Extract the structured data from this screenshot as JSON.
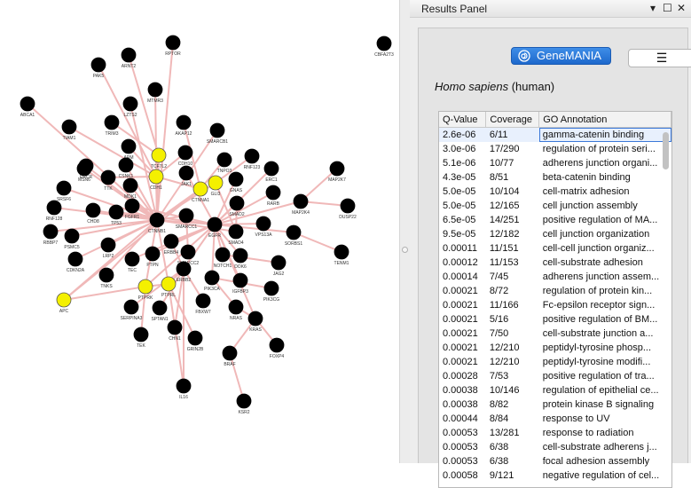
{
  "results_panel": {
    "title": "Results Panel",
    "header_buttons": {
      "dropdown": "▾",
      "float": "☐",
      "close": "✕"
    },
    "genemania_button": "GeneMANIA",
    "species_italic": "Homo sapiens",
    "species_plain": " (human)",
    "menu_button": "☰",
    "table": {
      "columns": [
        "Q-Value",
        "Coverage",
        "GO Annotation"
      ],
      "rows": [
        [
          "2.6e-06",
          "6/11",
          "gamma-catenin binding"
        ],
        [
          "3.0e-06",
          "17/290",
          "regulation of protein seri..."
        ],
        [
          "5.1e-06",
          "10/77",
          "adherens junction organi..."
        ],
        [
          "4.3e-05",
          "8/51",
          "beta-catenin binding"
        ],
        [
          "5.0e-05",
          "10/104",
          "cell-matrix adhesion"
        ],
        [
          "5.0e-05",
          "12/165",
          "cell junction assembly"
        ],
        [
          "6.5e-05",
          "14/251",
          "positive regulation of MA..."
        ],
        [
          "9.5e-05",
          "12/182",
          "cell junction organization"
        ],
        [
          "0.00011",
          "11/151",
          "cell-cell junction organiz..."
        ],
        [
          "0.00012",
          "11/153",
          "cell-substrate adhesion"
        ],
        [
          "0.00014",
          "7/45",
          "adherens junction assem..."
        ],
        [
          "0.00021",
          "8/72",
          "regulation of protein kin..."
        ],
        [
          "0.00021",
          "11/166",
          "Fc-epsilon receptor sign..."
        ],
        [
          "0.00021",
          "5/16",
          "positive regulation of BM..."
        ],
        [
          "0.00021",
          "7/50",
          "cell-substrate junction a..."
        ],
        [
          "0.00021",
          "12/210",
          "peptidyl-tyrosine phosp..."
        ],
        [
          "0.00021",
          "12/210",
          "peptidyl-tyrosine modifi..."
        ],
        [
          "0.00028",
          "7/53",
          "positive regulation of tra..."
        ],
        [
          "0.00038",
          "10/146",
          "regulation of epithelial ce..."
        ],
        [
          "0.00038",
          "8/82",
          "protein kinase B signaling"
        ],
        [
          "0.00044",
          "8/84",
          "response to UV"
        ],
        [
          "0.00053",
          "13/281",
          "response to radiation"
        ],
        [
          "0.00053",
          "6/38",
          "cell-substrate adherens j..."
        ],
        [
          "0.00053",
          "6/38",
          "focal adhesion assembly"
        ],
        [
          "0.00058",
          "9/121",
          "negative regulation of cel..."
        ]
      ]
    }
  },
  "network": {
    "node_color": "#000000",
    "query_node_color": "#f4f000",
    "edge_color": "#f0b8b8",
    "nodes": [
      {
        "id": "RPTOR",
        "label": "RPTOR"
      },
      {
        "id": "CBFA2T3",
        "label": "CBFA2T3"
      },
      {
        "id": "ARNT2",
        "label": "ARNT2"
      },
      {
        "id": "PAK5",
        "label": "PAK5"
      },
      {
        "id": "MTMR3",
        "label": "MTMR3"
      },
      {
        "id": "LZTS2",
        "label": "LZTS2"
      },
      {
        "id": "ABCA1",
        "label": "ABCA1"
      },
      {
        "id": "TRIM3",
        "label": "TRIM3"
      },
      {
        "id": "TIAM1",
        "label": "TIAM1"
      },
      {
        "id": "AKAP12",
        "label": "AKAP12"
      },
      {
        "id": "SMARCB1",
        "label": "SMARCB1"
      },
      {
        "id": "ARM",
        "label": "ARM"
      },
      {
        "id": "TCF7L2",
        "label": "TCF7L2"
      },
      {
        "id": "CDH10",
        "label": "CDH10"
      },
      {
        "id": "CSNK1",
        "label": "CSNK1"
      },
      {
        "id": "CDH1",
        "label": "CDH1"
      },
      {
        "id": "ERCR",
        "label": "ERCR"
      },
      {
        "id": "TNPO3",
        "label": "TNPO3"
      },
      {
        "id": "RNF123",
        "label": "RNF123"
      },
      {
        "id": "MSN6",
        "label": "MSN6"
      },
      {
        "id": "TTK",
        "label": "TTK"
      },
      {
        "id": "JAK1",
        "label": "JAK1"
      },
      {
        "id": "CTNNA1",
        "label": "CTNNA1"
      },
      {
        "id": "GLI3",
        "label": "GLI3"
      },
      {
        "id": "ERC1",
        "label": "ERC1"
      },
      {
        "id": "MAP2K7",
        "label": "MAP2K7"
      },
      {
        "id": "SRSF6",
        "label": "SRSF6"
      },
      {
        "id": "MDK1",
        "label": "MDK1"
      },
      {
        "id": "GNAS",
        "label": "GNAS"
      },
      {
        "id": "RARB",
        "label": "RARB"
      },
      {
        "id": "RNF128",
        "label": "RNF128"
      },
      {
        "id": "CHD8",
        "label": "CHD8"
      },
      {
        "id": "TP53",
        "label": "TP53"
      },
      {
        "id": "FGFR1",
        "label": "FGFR1"
      },
      {
        "id": "SMAD2",
        "label": "SMAD2"
      },
      {
        "id": "MAP2K4",
        "label": "MAP2K4"
      },
      {
        "id": "DUSP22",
        "label": "DUSP22"
      },
      {
        "id": "CTNNB1",
        "label": "CTNNB1"
      },
      {
        "id": "SMARCC1",
        "label": "SMARCC1"
      },
      {
        "id": "EGFR",
        "label": "EGFR"
      },
      {
        "id": "VPS13A",
        "label": "VPS13A"
      },
      {
        "id": "RBBP7",
        "label": "RBBP7"
      },
      {
        "id": "PSMC5",
        "label": "PSMC5"
      },
      {
        "id": "SMAD4",
        "label": "SMAD4"
      },
      {
        "id": "SORBS1",
        "label": "SORBS1"
      },
      {
        "id": "LRP2",
        "label": "LRP2"
      },
      {
        "id": "ERBB4",
        "label": "ERBB4"
      },
      {
        "id": "SMARCC2",
        "label": "SMARCC2"
      },
      {
        "id": "TENM1",
        "label": "TENM1"
      },
      {
        "id": "CDKN2A",
        "label": "CDKN2A"
      },
      {
        "id": "TEC",
        "label": "TEC"
      },
      {
        "id": "PTPN",
        "label": "PTPN"
      },
      {
        "id": "NOTCH1",
        "label": "NOTCH1"
      },
      {
        "id": "DOK6",
        "label": "DOK6"
      },
      {
        "id": "JAG2",
        "label": "JAG2"
      },
      {
        "id": "TNKS",
        "label": "TNKS"
      },
      {
        "id": "ERBB2",
        "label": "ERBB2"
      },
      {
        "id": "IGFBP3",
        "label": "IGFBP3"
      },
      {
        "id": "APC",
        "label": "APC"
      },
      {
        "id": "PTPRK",
        "label": "PTPRK"
      },
      {
        "id": "PTPRL",
        "label": "PTPRL"
      },
      {
        "id": "PIK3CA",
        "label": "PIK3CA"
      },
      {
        "id": "PIK3CG",
        "label": "PIK3CG"
      },
      {
        "id": "SERPINA3",
        "label": "SERPINA3"
      },
      {
        "id": "SPTAN1",
        "label": "SPTAN1"
      },
      {
        "id": "FBXW7",
        "label": "FBXW7"
      },
      {
        "id": "NRAS",
        "label": "NRAS"
      },
      {
        "id": "KRAS",
        "label": "KRAS"
      },
      {
        "id": "TEK",
        "label": "TEK"
      },
      {
        "id": "CHN1",
        "label": "CHN1"
      },
      {
        "id": "GRIN2B",
        "label": "GRIN2B"
      },
      {
        "id": "FOXP4",
        "label": "FOXP4"
      },
      {
        "id": "BRAF",
        "label": "BRAF"
      },
      {
        "id": "IL16",
        "label": "IL16"
      },
      {
        "id": "KSR2",
        "label": "KSR2"
      }
    ],
    "query_nodes": [
      "TCF7L2",
      "CDH1",
      "CTNNA1",
      "GLI3",
      "APC",
      "PTPRK",
      "PTPRL"
    ]
  }
}
